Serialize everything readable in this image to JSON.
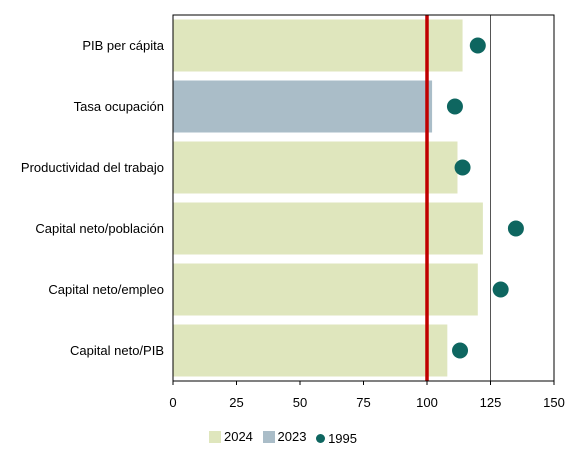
{
  "chart_data": {
    "type": "bar",
    "orientation": "horizontal",
    "categories": [
      "PIB per cápita",
      "Tasa ocupación",
      "Productividad del trabajo",
      "Capital neto/población",
      "Capital neto/empleo",
      "Capital neto/PIB"
    ],
    "series": [
      {
        "name": "2024",
        "color": "#dfe6bd",
        "values": [
          114,
          null,
          112,
          122,
          120,
          108
        ]
      },
      {
        "name": "2023",
        "color": "#aabdc8",
        "values": [
          null,
          102,
          null,
          null,
          null,
          null
        ]
      },
      {
        "name": "1995",
        "color": "#0e6660",
        "marker": "dot",
        "values": [
          120,
          111,
          114,
          135,
          129,
          113
        ]
      }
    ],
    "reference_line": {
      "value": 100,
      "color": "#c00000"
    },
    "xlim": [
      0,
      150
    ],
    "xticks": [
      "0",
      "25",
      "50",
      "75",
      "100",
      "125",
      "150"
    ],
    "grid_at": [
      125
    ],
    "legend_position": "bottom"
  },
  "legend": [
    {
      "label": "2024",
      "color": "#dfe6bd",
      "kind": "square"
    },
    {
      "label": "2023",
      "color": "#aabdc8",
      "kind": "square"
    },
    {
      "label": "1995",
      "color": "#0e6660",
      "kind": "dot"
    }
  ]
}
